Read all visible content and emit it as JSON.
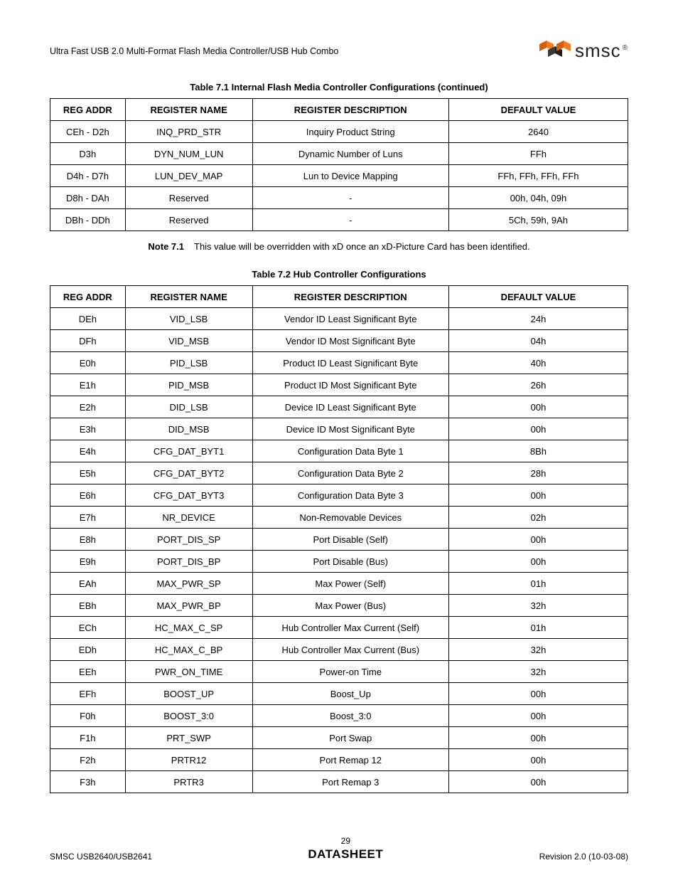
{
  "header": {
    "title": "Ultra Fast USB 2.0 Multi-Format Flash Media Controller/USB Hub Combo",
    "logo_text": "smsc",
    "logo_reg": "®",
    "logo_colors": {
      "orange": "#f47b20",
      "black": "#231f20"
    }
  },
  "table1": {
    "caption": "Table 7.1  Internal Flash Media Controller Configurations (continued)",
    "headers": [
      "REG ADDR",
      "REGISTER NAME",
      "REGISTER DESCRIPTION",
      "DEFAULT VALUE"
    ],
    "rows": [
      [
        "CEh - D2h",
        "INQ_PRD_STR",
        "Inquiry Product String",
        "2640"
      ],
      [
        "D3h",
        "DYN_NUM_LUN",
        "Dynamic Number of Luns",
        "FFh"
      ],
      [
        "D4h - D7h",
        "LUN_DEV_MAP",
        "Lun to Device Mapping",
        "FFh, FFh, FFh, FFh"
      ],
      [
        "D8h - DAh",
        "Reserved",
        "-",
        "00h, 04h, 09h"
      ],
      [
        "DBh - DDh",
        "Reserved",
        "-",
        "5Ch, 59h, 9Ah"
      ]
    ]
  },
  "note": {
    "label": "Note 7.1",
    "text": "This value will be overridden with xD once an xD-Picture Card has been identified."
  },
  "table2": {
    "caption": "Table 7.2  Hub Controller Configurations",
    "headers": [
      "REG ADDR",
      "REGISTER NAME",
      "REGISTER DESCRIPTION",
      "DEFAULT VALUE"
    ],
    "rows": [
      [
        "DEh",
        "VID_LSB",
        "Vendor ID Least Significant Byte",
        "24h"
      ],
      [
        "DFh",
        "VID_MSB",
        "Vendor ID Most Significant Byte",
        "04h"
      ],
      [
        "E0h",
        "PID_LSB",
        "Product ID Least Significant Byte",
        "40h"
      ],
      [
        "E1h",
        "PID_MSB",
        "Product ID Most Significant Byte",
        "26h"
      ],
      [
        "E2h",
        "DID_LSB",
        "Device ID Least Significant Byte",
        "00h"
      ],
      [
        "E3h",
        "DID_MSB",
        "Device ID Most Significant Byte",
        "00h"
      ],
      [
        "E4h",
        "CFG_DAT_BYT1",
        "Configuration Data Byte 1",
        "8Bh"
      ],
      [
        "E5h",
        "CFG_DAT_BYT2",
        "Configuration Data Byte 2",
        "28h"
      ],
      [
        "E6h",
        "CFG_DAT_BYT3",
        "Configuration Data Byte 3",
        "00h"
      ],
      [
        "E7h",
        "NR_DEVICE",
        "Non-Removable Devices",
        "02h"
      ],
      [
        "E8h",
        "PORT_DIS_SP",
        "Port Disable (Self)",
        "00h"
      ],
      [
        "E9h",
        "PORT_DIS_BP",
        "Port Disable (Bus)",
        "00h"
      ],
      [
        "EAh",
        "MAX_PWR_SP",
        "Max Power (Self)",
        "01h"
      ],
      [
        "EBh",
        "MAX_PWR_BP",
        "Max Power (Bus)",
        "32h"
      ],
      [
        "ECh",
        "HC_MAX_C_SP",
        "Hub Controller Max Current (Self)",
        "01h"
      ],
      [
        "EDh",
        "HC_MAX_C_BP",
        "Hub Controller Max Current (Bus)",
        "32h"
      ],
      [
        "EEh",
        "PWR_ON_TIME",
        "Power-on Time",
        "32h"
      ],
      [
        "EFh",
        "BOOST_UP",
        "Boost_Up",
        "00h"
      ],
      [
        "F0h",
        "BOOST_3:0",
        "Boost_3:0",
        "00h"
      ],
      [
        "F1h",
        "PRT_SWP",
        "Port Swap",
        "00h"
      ],
      [
        "F2h",
        "PRTR12",
        "Port Remap 12",
        "00h"
      ],
      [
        "F3h",
        "PRTR3",
        "Port Remap 3",
        "00h"
      ]
    ]
  },
  "footer": {
    "left": "SMSC USB2640/USB2641",
    "page": "29",
    "datasheet": "DATASHEET",
    "right": "Revision 2.0 (10-03-08)"
  }
}
